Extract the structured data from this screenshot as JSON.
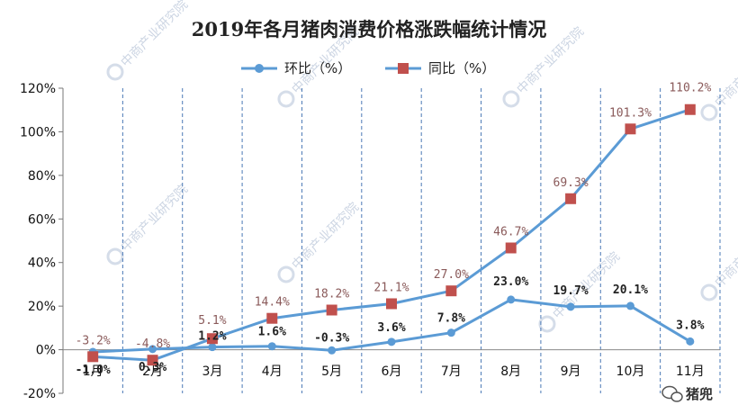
{
  "chart_data": {
    "type": "line",
    "title": "2019年各月猪肉消费价格涨跌幅统计情况",
    "categories": [
      "1月",
      "2月",
      "3月",
      "4月",
      "5月",
      "6月",
      "7月",
      "8月",
      "9月",
      "10月",
      "11月"
    ],
    "series": [
      {
        "name": "环比（%）",
        "color": "#5b9bd5",
        "marker": "circle",
        "values": [
          -1.0,
          0.3,
          1.2,
          1.6,
          -0.3,
          3.6,
          7.8,
          23.0,
          19.7,
          20.1,
          3.8
        ],
        "labels": [
          "-1.0%",
          "0.3%",
          "1.2%",
          "1.6%",
          "-0.3%",
          "3.6%",
          "7.8%",
          "23.0%",
          "19.7%",
          "20.1%",
          "3.8%"
        ]
      },
      {
        "name": "同比（%）",
        "color": "#5b9bd5",
        "marker": "square",
        "marker_color": "#c0504d",
        "values": [
          -3.2,
          -4.8,
          5.1,
          14.4,
          18.2,
          21.1,
          27.0,
          46.7,
          69.3,
          101.3,
          110.2
        ],
        "labels": [
          "-3.2%",
          "-4.8%",
          "5.1%",
          "14.4%",
          "18.2%",
          "21.1%",
          "27.0%",
          "46.7%",
          "69.3%",
          "101.3%",
          "110.2%"
        ]
      }
    ],
    "y_ticks": [
      "-20%",
      "0%",
      "20%",
      "40%",
      "60%",
      "80%",
      "100%",
      "120%"
    ],
    "ylim": [
      -20,
      120
    ],
    "legend_position": "top-center",
    "grid": "vertical-dashed"
  },
  "watermark": {
    "text": "中商产业研究院"
  },
  "badge": {
    "text": "猪兜",
    "icon": "wechat-icon"
  }
}
